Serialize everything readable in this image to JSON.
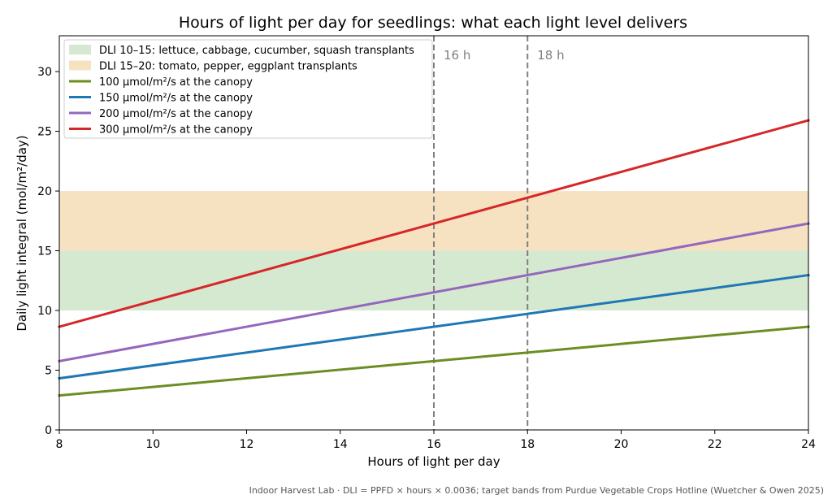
{
  "chart_data": {
    "type": "line",
    "title": "Hours of light per day for seedlings: what each light level delivers",
    "xlabel": "Hours of light per day",
    "ylabel": "Daily light integral (mol/m²/day)",
    "xlim": [
      8,
      24
    ],
    "ylim": [
      0,
      33
    ],
    "xticks": [
      8,
      10,
      12,
      14,
      16,
      18,
      20,
      22,
      24
    ],
    "yticks": [
      0,
      5,
      10,
      15,
      20,
      25,
      30
    ],
    "grid": false,
    "legend_position": "top-left",
    "bands": [
      {
        "name": "DLI 10–15: lettuce, cabbage, cucumber, squash transplants",
        "y_from": 10,
        "y_to": 15,
        "color": "#d5e9d1"
      },
      {
        "name": "DLI 15–20: tomato, pepper, eggplant transplants",
        "y_from": 15,
        "y_to": 20,
        "color": "#f6e2c1"
      }
    ],
    "vlines": [
      {
        "x": 16,
        "label": "16 h",
        "color": "#808080"
      },
      {
        "x": 18,
        "label": "18 h",
        "color": "#808080"
      }
    ],
    "series": [
      {
        "name": "100 µmol/m²/s at the canopy",
        "color": "#6b8e23",
        "x": [
          8,
          24
        ],
        "y": [
          2.88,
          8.64
        ]
      },
      {
        "name": "150 µmol/m²/s at the canopy",
        "color": "#1f77b4",
        "x": [
          8,
          24
        ],
        "y": [
          4.32,
          12.96
        ]
      },
      {
        "name": "200 µmol/m²/s at the canopy",
        "color": "#9467bd",
        "x": [
          8,
          24
        ],
        "y": [
          5.76,
          17.28
        ]
      },
      {
        "name": "300 µmol/m²/s at the canopy",
        "color": "#d62728",
        "x": [
          8,
          24
        ],
        "y": [
          8.64,
          25.92
        ]
      }
    ]
  },
  "footnote": "Indoor Harvest Lab · DLI = PPFD × hours × 0.0036; target bands from Purdue Vegetable Crops Hotline (Wuetcher & Owen 2025)"
}
